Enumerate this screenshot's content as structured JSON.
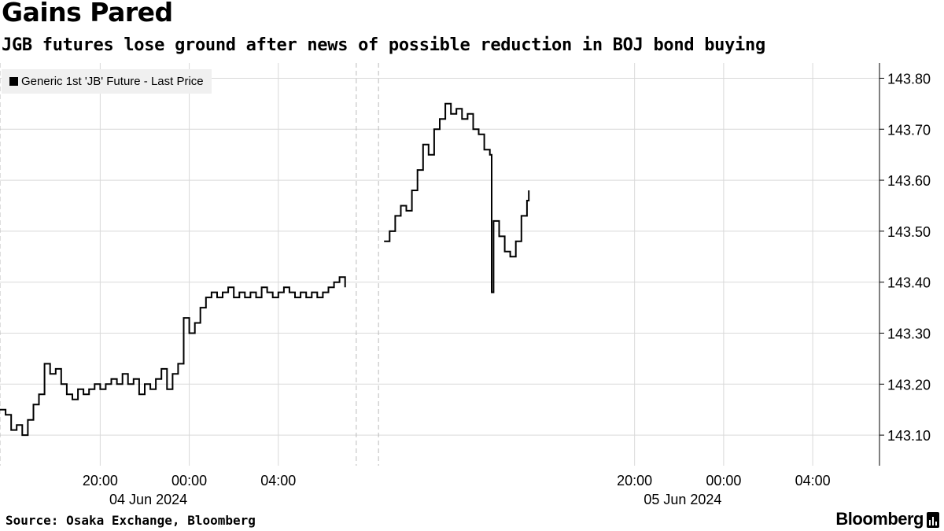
{
  "header": {
    "title": "Gains Pared",
    "subtitle": "JGB futures lose ground after news of possible reduction in BOJ bond buying"
  },
  "footer": {
    "source": "Source: Osaka Exchange, Bloomberg",
    "brand": "Bloomberg",
    "brand_icon": "bloomberg-bars-icon"
  },
  "chart_data": {
    "type": "line",
    "series": [
      {
        "name": "Generic 1st 'JB' Future - Last Price",
        "color": "#000000",
        "points": [
          [
            "2024-06-04 15:30",
            143.15
          ],
          [
            "2024-06-04 15:45",
            143.14
          ],
          [
            "2024-06-04 16:00",
            143.11
          ],
          [
            "2024-06-04 16:15",
            143.12
          ],
          [
            "2024-06-04 16:30",
            143.1
          ],
          [
            "2024-06-04 16:45",
            143.13
          ],
          [
            "2024-06-04 17:00",
            143.16
          ],
          [
            "2024-06-04 17:15",
            143.18
          ],
          [
            "2024-06-04 17:30",
            143.24
          ],
          [
            "2024-06-04 17:45",
            143.22
          ],
          [
            "2024-06-04 18:00",
            143.23
          ],
          [
            "2024-06-04 18:15",
            143.2
          ],
          [
            "2024-06-04 18:30",
            143.18
          ],
          [
            "2024-06-04 18:45",
            143.17
          ],
          [
            "2024-06-04 19:00",
            143.19
          ],
          [
            "2024-06-04 19:15",
            143.18
          ],
          [
            "2024-06-04 19:30",
            143.19
          ],
          [
            "2024-06-04 19:45",
            143.2
          ],
          [
            "2024-06-04 20:00",
            143.19
          ],
          [
            "2024-06-04 20:15",
            143.2
          ],
          [
            "2024-06-04 20:30",
            143.21
          ],
          [
            "2024-06-04 20:45",
            143.2
          ],
          [
            "2024-06-04 21:00",
            143.22
          ],
          [
            "2024-06-04 21:15",
            143.2
          ],
          [
            "2024-06-04 21:30",
            143.21
          ],
          [
            "2024-06-04 21:45",
            143.18
          ],
          [
            "2024-06-04 22:00",
            143.2
          ],
          [
            "2024-06-04 22:15",
            143.19
          ],
          [
            "2024-06-04 22:30",
            143.21
          ],
          [
            "2024-06-04 22:45",
            143.23
          ],
          [
            "2024-06-04 23:00",
            143.19
          ],
          [
            "2024-06-04 23:15",
            143.22
          ],
          [
            "2024-06-04 23:30",
            143.24
          ],
          [
            "2024-06-04 23:45",
            143.33
          ],
          [
            "2024-06-05 00:00",
            143.3
          ],
          [
            "2024-06-05 00:15",
            143.32
          ],
          [
            "2024-06-05 00:30",
            143.35
          ],
          [
            "2024-06-05 00:45",
            143.37
          ],
          [
            "2024-06-05 01:00",
            143.38
          ],
          [
            "2024-06-05 01:15",
            143.37
          ],
          [
            "2024-06-05 01:30",
            143.38
          ],
          [
            "2024-06-05 01:45",
            143.39
          ],
          [
            "2024-06-05 02:00",
            143.37
          ],
          [
            "2024-06-05 02:15",
            143.38
          ],
          [
            "2024-06-05 02:30",
            143.37
          ],
          [
            "2024-06-05 02:45",
            143.38
          ],
          [
            "2024-06-05 03:00",
            143.37
          ],
          [
            "2024-06-05 03:15",
            143.39
          ],
          [
            "2024-06-05 03:30",
            143.38
          ],
          [
            "2024-06-05 03:45",
            143.37
          ],
          [
            "2024-06-05 04:00",
            143.38
          ],
          [
            "2024-06-05 04:15",
            143.39
          ],
          [
            "2024-06-05 04:30",
            143.38
          ],
          [
            "2024-06-05 04:45",
            143.37
          ],
          [
            "2024-06-05 05:00",
            143.38
          ],
          [
            "2024-06-05 05:15",
            143.37
          ],
          [
            "2024-06-05 05:30",
            143.38
          ],
          [
            "2024-06-05 05:45",
            143.37
          ],
          [
            "2024-06-05 06:00",
            143.38
          ],
          [
            "2024-06-05 06:15",
            143.39
          ],
          [
            "2024-06-05 06:30",
            143.4
          ],
          [
            "2024-06-05 06:45",
            143.41
          ],
          [
            "2024-06-05 07:00",
            143.39
          ],
          [
            "2024-06-05 08:45",
            143.48
          ],
          [
            "2024-06-05 09:00",
            143.5
          ],
          [
            "2024-06-05 09:15",
            143.53
          ],
          [
            "2024-06-05 09:30",
            143.55
          ],
          [
            "2024-06-05 09:45",
            143.54
          ],
          [
            "2024-06-05 10:00",
            143.58
          ],
          [
            "2024-06-05 10:15",
            143.62
          ],
          [
            "2024-06-05 10:30",
            143.67
          ],
          [
            "2024-06-05 10:45",
            143.65
          ],
          [
            "2024-06-05 11:00",
            143.7
          ],
          [
            "2024-06-05 11:15",
            143.72
          ],
          [
            "2024-06-05 11:30",
            143.75
          ],
          [
            "2024-06-05 11:45",
            143.73
          ],
          [
            "2024-06-05 12:00",
            143.74
          ],
          [
            "2024-06-05 12:15",
            143.72
          ],
          [
            "2024-06-05 12:30",
            143.73
          ],
          [
            "2024-06-05 12:45",
            143.7
          ],
          [
            "2024-06-05 13:00",
            143.69
          ],
          [
            "2024-06-05 13:15",
            143.66
          ],
          [
            "2024-06-05 13:30",
            143.65
          ],
          [
            "2024-06-05 13:35",
            143.38
          ],
          [
            "2024-06-05 13:40",
            143.52
          ],
          [
            "2024-06-05 13:55",
            143.49
          ],
          [
            "2024-06-05 14:10",
            143.46
          ],
          [
            "2024-06-05 14:25",
            143.45
          ],
          [
            "2024-06-05 14:40",
            143.48
          ],
          [
            "2024-06-05 14:55",
            143.53
          ],
          [
            "2024-06-05 15:10",
            143.56
          ],
          [
            "2024-06-05 15:15",
            143.58
          ]
        ]
      }
    ],
    "x_ticks": [
      {
        "at": "2024-06-04 20:00",
        "label": "20:00"
      },
      {
        "at": "2024-06-05 00:00",
        "label": "00:00"
      },
      {
        "at": "2024-06-05 04:00",
        "label": "04:00"
      },
      {
        "at": "2024-06-05 20:00",
        "label": "20:00"
      },
      {
        "at": "2024-06-06 00:00",
        "label": "00:00"
      },
      {
        "at": "2024-06-06 04:00",
        "label": "04:00"
      }
    ],
    "date_labels": [
      {
        "at": "2024-06-05 00:00",
        "label": "04 Jun 2024"
      },
      {
        "at": "2024-06-06 00:00",
        "label": "05 Jun 2024"
      }
    ],
    "session_breaks": [
      "2024-06-04 15:30",
      "2024-06-05 07:30",
      "2024-06-05 08:30"
    ],
    "xlim": [
      "2024-06-04 15:30",
      "2024-06-06 07:00"
    ],
    "ylim": [
      143.04,
      143.83
    ],
    "y_ticks": [
      {
        "value": 143.1,
        "label": "143.10"
      },
      {
        "value": 143.2,
        "label": "143.20"
      },
      {
        "value": 143.3,
        "label": "143.30"
      },
      {
        "value": 143.4,
        "label": "143.40"
      },
      {
        "value": 143.5,
        "label": "143.50"
      },
      {
        "value": 143.6,
        "label": "143.60"
      },
      {
        "value": 143.7,
        "label": "143.70"
      },
      {
        "value": 143.8,
        "label": "143.80"
      }
    ],
    "y_axis_side": "right",
    "grid": true,
    "legend_position": "top-left"
  }
}
